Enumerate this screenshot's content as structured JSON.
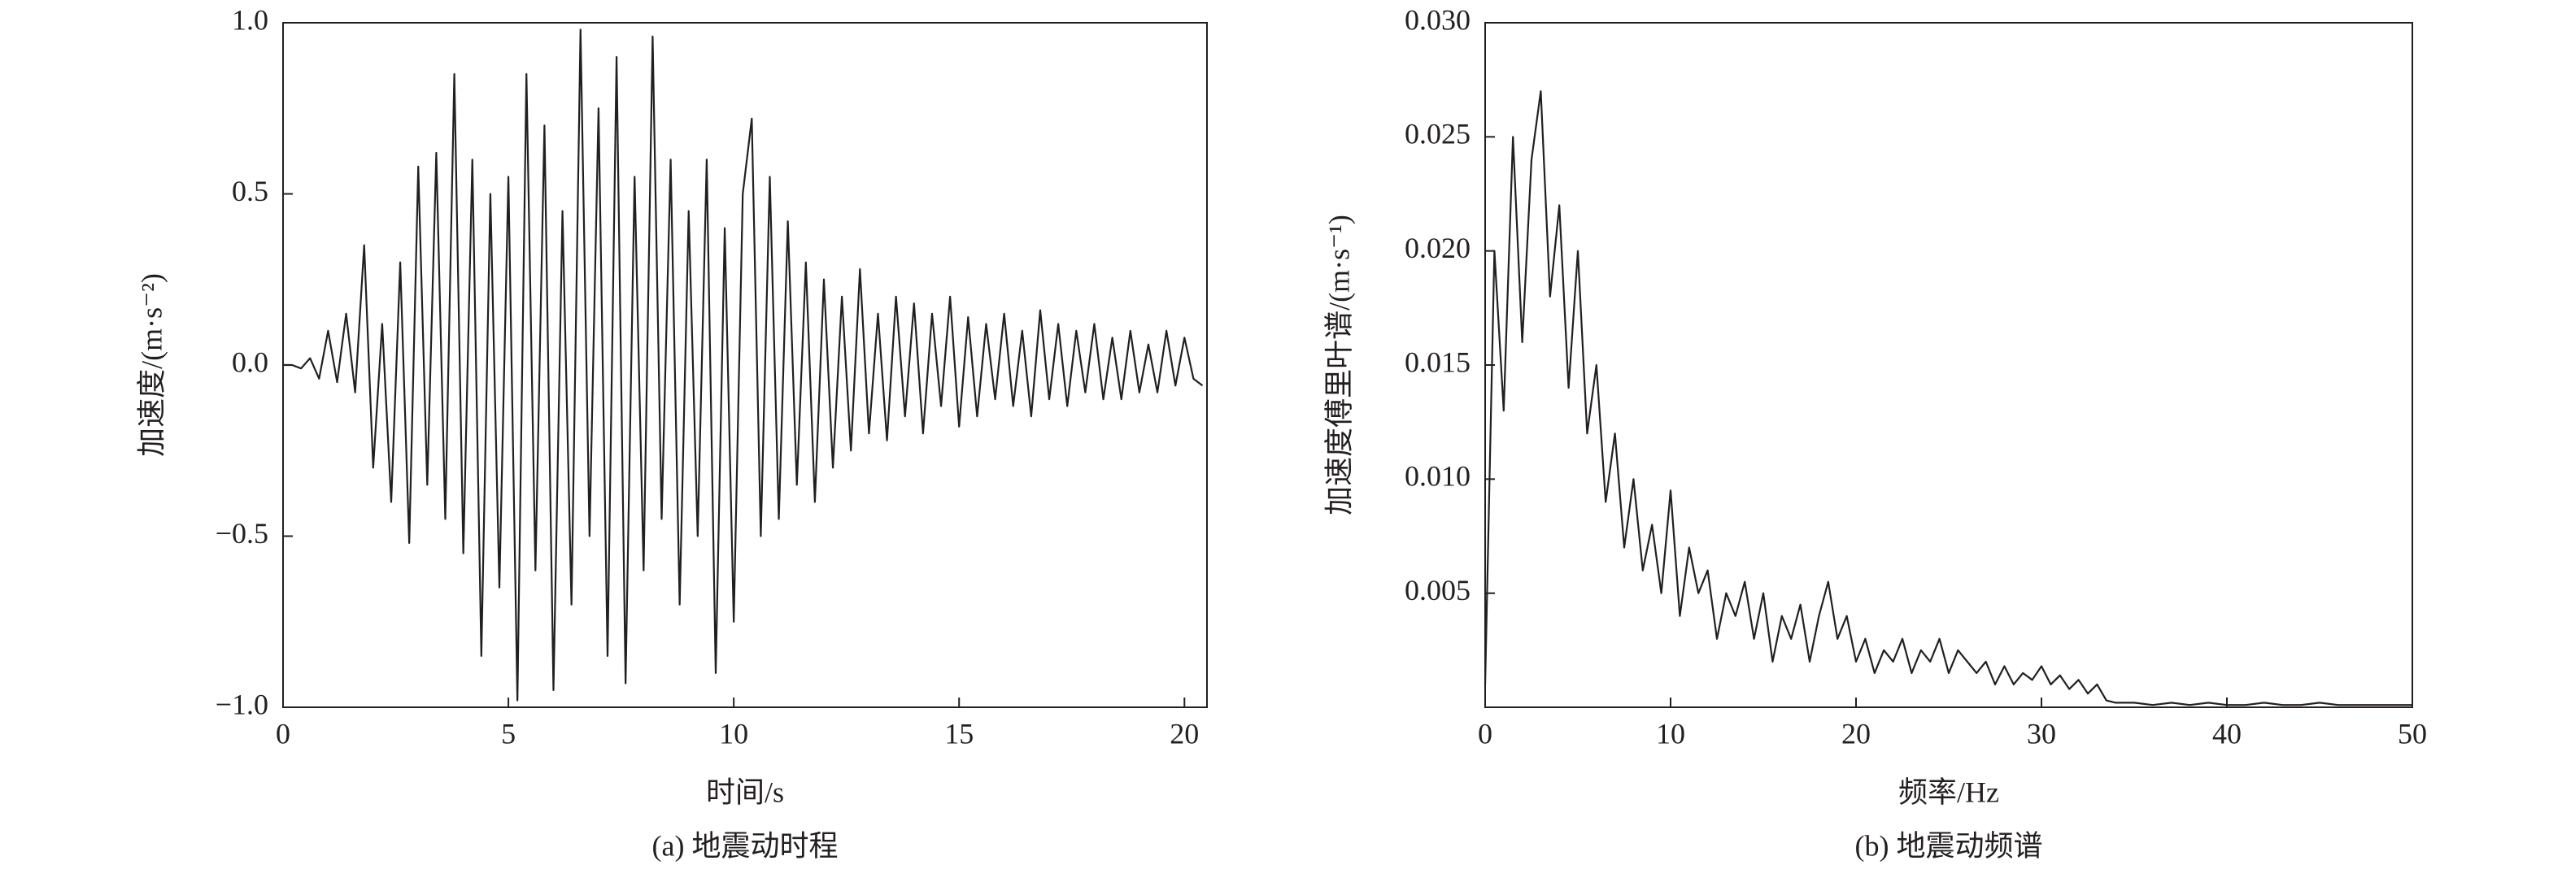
{
  "chart_data": [
    {
      "type": "line",
      "caption": "(a) 地震动时程",
      "xlabel": "时间/s",
      "ylabel": "加速度/(m·s⁻²)",
      "color": "#231f20",
      "xlim": [
        0,
        20.5
      ],
      "xticks": [
        0,
        5,
        10,
        15,
        20
      ],
      "ylim": [
        -1,
        1
      ],
      "yticks": [
        {
          "value": -1,
          "label": "−1.0"
        },
        {
          "value": -0.5,
          "label": "−0.5"
        },
        {
          "value": 0,
          "label": "0.0"
        },
        {
          "value": 0.5,
          "label": "0.5"
        },
        {
          "value": 1,
          "label": "1.0"
        }
      ],
      "x": [
        0,
        0.2,
        0.4,
        0.6,
        0.8,
        1.0,
        1.2,
        1.4,
        1.6,
        1.8,
        2.0,
        2.2,
        2.4,
        2.6,
        2.8,
        3.0,
        3.2,
        3.4,
        3.6,
        3.8,
        4.0,
        4.2,
        4.4,
        4.6,
        4.8,
        5.0,
        5.2,
        5.4,
        5.6,
        5.8,
        6.0,
        6.2,
        6.4,
        6.6,
        6.8,
        7.0,
        7.2,
        7.4,
        7.6,
        7.8,
        8.0,
        8.2,
        8.4,
        8.6,
        8.8,
        9.0,
        9.2,
        9.4,
        9.6,
        9.8,
        10.0,
        10.2,
        10.4,
        10.6,
        10.8,
        11.0,
        11.2,
        11.4,
        11.6,
        11.8,
        12.0,
        12.2,
        12.4,
        12.6,
        12.8,
        13.0,
        13.2,
        13.4,
        13.6,
        13.8,
        14.0,
        14.2,
        14.4,
        14.6,
        14.8,
        15.0,
        15.2,
        15.4,
        15.6,
        15.8,
        16.0,
        16.2,
        16.4,
        16.6,
        16.8,
        17.0,
        17.2,
        17.4,
        17.6,
        17.8,
        18.0,
        18.2,
        18.4,
        18.6,
        18.8,
        19.0,
        19.2,
        19.4,
        19.6,
        19.8,
        20.0,
        20.2,
        20.4
      ],
      "values": [
        0,
        0,
        -0.01,
        0.02,
        -0.04,
        0.1,
        -0.05,
        0.15,
        -0.08,
        0.35,
        -0.3,
        0.12,
        -0.4,
        0.3,
        -0.52,
        0.58,
        -0.35,
        0.62,
        -0.45,
        0.85,
        -0.55,
        0.6,
        -0.85,
        0.5,
        -0.65,
        0.55,
        -0.98,
        0.85,
        -0.6,
        0.7,
        -0.95,
        0.45,
        -0.7,
        0.98,
        -0.5,
        0.75,
        -0.85,
        0.9,
        -0.93,
        0.55,
        -0.6,
        0.96,
        -0.45,
        0.6,
        -0.7,
        0.45,
        -0.5,
        0.6,
        -0.9,
        0.4,
        -0.75,
        0.5,
        0.72,
        -0.5,
        0.55,
        -0.45,
        0.42,
        -0.35,
        0.3,
        -0.4,
        0.25,
        -0.3,
        0.2,
        -0.25,
        0.28,
        -0.2,
        0.15,
        -0.22,
        0.2,
        -0.15,
        0.18,
        -0.2,
        0.15,
        -0.12,
        0.2,
        -0.18,
        0.14,
        -0.15,
        0.12,
        -0.1,
        0.15,
        -0.12,
        0.1,
        -0.15,
        0.16,
        -0.1,
        0.12,
        -0.12,
        0.1,
        -0.08,
        0.12,
        -0.1,
        0.08,
        -0.1,
        0.1,
        -0.08,
        0.06,
        -0.08,
        0.1,
        -0.06,
        0.08,
        -0.04,
        -0.06
      ]
    },
    {
      "type": "line",
      "caption": "(b) 地震动频谱",
      "xlabel": "频率/Hz",
      "ylabel": "加速度傅里叶谱/(m·s⁻¹)",
      "color": "#231f20",
      "xlim": [
        0,
        50
      ],
      "xticks": [
        0,
        10,
        20,
        30,
        40,
        50
      ],
      "ylim": [
        0,
        0.03
      ],
      "yticks": [
        0.005,
        {
          "value": 0.01,
          "label": "0.010"
        },
        0.015,
        {
          "value": 0.02,
          "label": "0.020"
        },
        0.025,
        {
          "value": 0.03,
          "label": "0.030"
        }
      ],
      "x": [
        0,
        0.5,
        1,
        1.5,
        2,
        2.5,
        3,
        3.5,
        4,
        4.5,
        5,
        5.5,
        6,
        6.5,
        7,
        7.5,
        8,
        8.5,
        9,
        9.5,
        10,
        10.5,
        11,
        11.5,
        12,
        12.5,
        13,
        13.5,
        14,
        14.5,
        15,
        15.5,
        16,
        16.5,
        17,
        17.5,
        18,
        18.5,
        19,
        19.5,
        20,
        20.5,
        21,
        21.5,
        22,
        22.5,
        23,
        23.5,
        24,
        24.5,
        25,
        25.5,
        26,
        26.5,
        27,
        27.5,
        28,
        28.5,
        29,
        29.5,
        30,
        30.5,
        31,
        31.5,
        32,
        32.5,
        33,
        33.5,
        34,
        35,
        36,
        37,
        38,
        39,
        40,
        41,
        42,
        43,
        44,
        45,
        46,
        47,
        48,
        49,
        50
      ],
      "values": [
        0.001,
        0.02,
        0.013,
        0.025,
        0.016,
        0.024,
        0.027,
        0.018,
        0.022,
        0.014,
        0.02,
        0.012,
        0.015,
        0.009,
        0.012,
        0.007,
        0.01,
        0.006,
        0.008,
        0.005,
        0.0095,
        0.004,
        0.007,
        0.005,
        0.006,
        0.003,
        0.005,
        0.004,
        0.0055,
        0.003,
        0.005,
        0.002,
        0.004,
        0.003,
        0.0045,
        0.002,
        0.004,
        0.0055,
        0.003,
        0.004,
        0.002,
        0.003,
        0.0015,
        0.0025,
        0.002,
        0.003,
        0.0015,
        0.0025,
        0.002,
        0.003,
        0.0015,
        0.0025,
        0.002,
        0.0015,
        0.002,
        0.001,
        0.0018,
        0.001,
        0.0015,
        0.0012,
        0.0018,
        0.001,
        0.0014,
        0.0008,
        0.0012,
        0.0006,
        0.001,
        0.0003,
        0.0002,
        0.0002,
        0.0001,
        0.0002,
        0.0001,
        0.0002,
        0.0001,
        0.0001,
        0.0002,
        0.0001,
        0.0001,
        0.0002,
        0.0001,
        0.0001,
        0.0001,
        0.0001,
        0.0001
      ]
    }
  ]
}
